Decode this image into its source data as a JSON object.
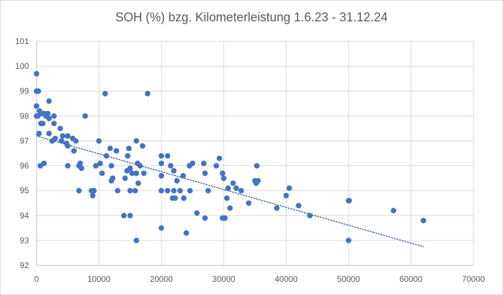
{
  "chart_data": {
    "type": "scatter",
    "title": "SOH (%) bzg. Kilometerleistung 1.6.23 - 31.12.24",
    "xlabel": "",
    "ylabel": "",
    "xlim": [
      0,
      70000
    ],
    "ylim": [
      92,
      101
    ],
    "x_ticks": [
      0,
      10000,
      20000,
      30000,
      40000,
      50000,
      60000,
      70000
    ],
    "y_ticks": [
      92,
      93,
      94,
      95,
      96,
      97,
      98,
      99,
      100,
      101
    ],
    "grid": true,
    "legend": "none",
    "marker_color": "#4472C4",
    "trendline": {
      "type": "linear",
      "x": [
        0,
        62000
      ],
      "y": [
        97.2,
        92.75
      ],
      "color": "#2E5C9A",
      "style": "dotted"
    },
    "points": [
      [
        0,
        99.7
      ],
      [
        0,
        99.0
      ],
      [
        300,
        99.0
      ],
      [
        0,
        98.4
      ],
      [
        0,
        98.0
      ],
      [
        200,
        98.0
      ],
      [
        500,
        98.2
      ],
      [
        800,
        98.1
      ],
      [
        1200,
        98.1
      ],
      [
        1500,
        98.0
      ],
      [
        1800,
        98.1
      ],
      [
        2000,
        97.9
      ],
      [
        2000,
        98.6
      ],
      [
        2800,
        98.0
      ],
      [
        700,
        97.7
      ],
      [
        1000,
        97.7
      ],
      [
        2800,
        97.7
      ],
      [
        2000,
        97.3
      ],
      [
        400,
        97.3
      ],
      [
        2500,
        97.0
      ],
      [
        3000,
        97.1
      ],
      [
        3800,
        97.5
      ],
      [
        4000,
        97.0
      ],
      [
        4200,
        97.2
      ],
      [
        4800,
        96.9
      ],
      [
        5000,
        96.8
      ],
      [
        5000,
        97.2
      ],
      [
        5800,
        97.1
      ],
      [
        6000,
        96.6
      ],
      [
        6300,
        97.0
      ],
      [
        7800,
        98.0
      ],
      [
        11000,
        98.9
      ],
      [
        17800,
        98.9
      ],
      [
        600,
        96.0
      ],
      [
        1200,
        96.1
      ],
      [
        5000,
        96.0
      ],
      [
        6800,
        96.0
      ],
      [
        7000,
        96.1
      ],
      [
        7200,
        95.9
      ],
      [
        6800,
        95.0
      ],
      [
        8800,
        95.0
      ],
      [
        9000,
        94.8
      ],
      [
        9200,
        95.0
      ],
      [
        9500,
        96.0
      ],
      [
        10000,
        97.0
      ],
      [
        10200,
        96.1
      ],
      [
        10500,
        95.7
      ],
      [
        11200,
        96.4
      ],
      [
        11800,
        96.7
      ],
      [
        12000,
        96.0
      ],
      [
        12200,
        95.5
      ],
      [
        12000,
        95.4
      ],
      [
        12800,
        96.6
      ],
      [
        13000,
        95.0
      ],
      [
        14000,
        94.0
      ],
      [
        14200,
        95.5
      ],
      [
        14500,
        95.8
      ],
      [
        14600,
        96.4
      ],
      [
        14800,
        96.7
      ],
      [
        15000,
        95.9
      ],
      [
        15000,
        95.0
      ],
      [
        15300,
        95.7
      ],
      [
        15800,
        95.0
      ],
      [
        16000,
        97.0
      ],
      [
        16000,
        95.7
      ],
      [
        16200,
        96.1
      ],
      [
        16300,
        95.3
      ],
      [
        16600,
        96.0
      ],
      [
        17000,
        96.8
      ],
      [
        17200,
        95.7
      ],
      [
        15000,
        94.0
      ],
      [
        16000,
        93.0
      ],
      [
        20000,
        93.5
      ],
      [
        20000,
        95.0
      ],
      [
        20000,
        95.6
      ],
      [
        20000,
        96.1
      ],
      [
        20000,
        96.4
      ],
      [
        21000,
        96.4
      ],
      [
        21000,
        95.0
      ],
      [
        21500,
        96.0
      ],
      [
        21800,
        94.7
      ],
      [
        22000,
        95.8
      ],
      [
        22000,
        95.0
      ],
      [
        22200,
        94.7
      ],
      [
        22500,
        95.4
      ],
      [
        23000,
        95.0
      ],
      [
        23500,
        95.6
      ],
      [
        23600,
        94.7
      ],
      [
        24000,
        93.3
      ],
      [
        24500,
        96.0
      ],
      [
        24600,
        95.0
      ],
      [
        25000,
        96.1
      ],
      [
        25700,
        94.1
      ],
      [
        26800,
        96.1
      ],
      [
        27000,
        95.7
      ],
      [
        27000,
        93.9
      ],
      [
        27500,
        95.0
      ],
      [
        28800,
        96.0
      ],
      [
        29300,
        96.3
      ],
      [
        29800,
        95.7
      ],
      [
        30000,
        95.5
      ],
      [
        29800,
        93.9
      ],
      [
        30200,
        93.9
      ],
      [
        30500,
        94.7
      ],
      [
        30700,
        95.1
      ],
      [
        31000,
        94.3
      ],
      [
        31500,
        95.3
      ],
      [
        32000,
        95.1
      ],
      [
        32800,
        95.0
      ],
      [
        34000,
        94.5
      ],
      [
        35000,
        95.4
      ],
      [
        35200,
        95.3
      ],
      [
        35300,
        96.0
      ],
      [
        35500,
        95.4
      ],
      [
        38500,
        94.3
      ],
      [
        40000,
        94.8
      ],
      [
        40500,
        95.1
      ],
      [
        42000,
        94.4
      ],
      [
        43800,
        94.0
      ],
      [
        50000,
        94.6
      ],
      [
        50100,
        94.6
      ],
      [
        50000,
        93.0
      ],
      [
        57200,
        94.2
      ],
      [
        62000,
        93.8
      ]
    ]
  }
}
